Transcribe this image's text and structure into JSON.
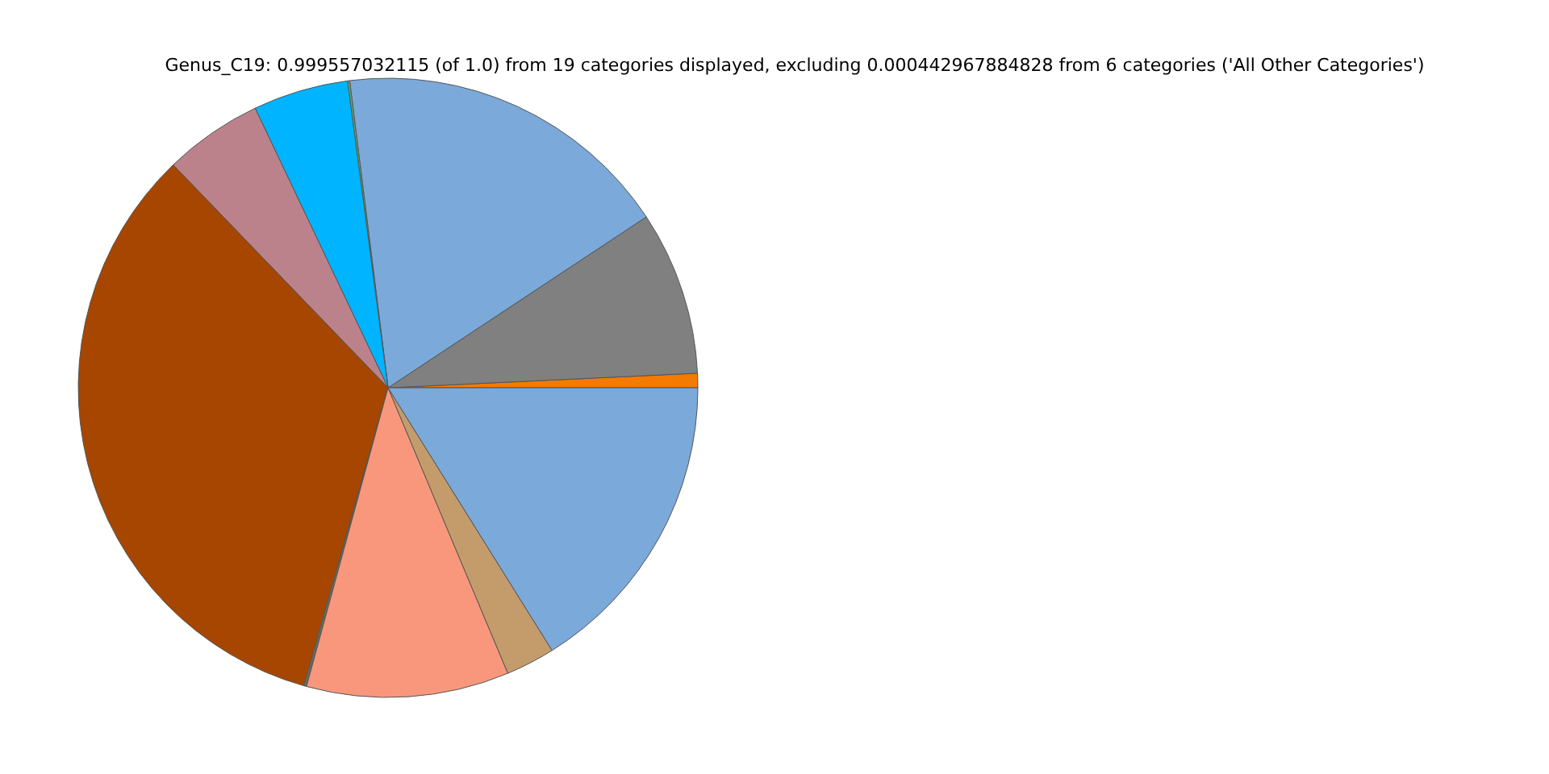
{
  "chart_data": {
    "type": "pie",
    "title": "Genus_C19: 0.999557032115 (of 1.0) from 19 categories displayed, excluding 0.000442967884828 from 6 categories ('All Other Categories')",
    "categories": [
      null,
      null,
      null,
      null,
      null,
      null,
      null,
      null,
      null,
      null,
      null,
      null,
      null,
      null,
      null,
      null,
      null,
      null,
      null
    ],
    "values": [
      0.75,
      8.56,
      17.67,
      0.11,
      null,
      4.97,
      5.14,
      33.42,
      null,
      null,
      0.14,
      null,
      null,
      null,
      null,
      null,
      10.56,
      2.56,
      16.12
    ],
    "colors": [
      "#f57a00",
      "#808080",
      "#7ba9d9",
      "#66aa66",
      "#d4a017",
      "#00b4ff",
      "#bc828c",
      "#a64600",
      "#8b0000",
      "#4b0082",
      "#6b6b5a",
      "#2e8b57",
      "#ff69b4",
      "#9370db",
      "#20b2aa",
      "#daa520",
      "#f9977c",
      "#c49c6c",
      "#7ba9d9"
    ]
  }
}
